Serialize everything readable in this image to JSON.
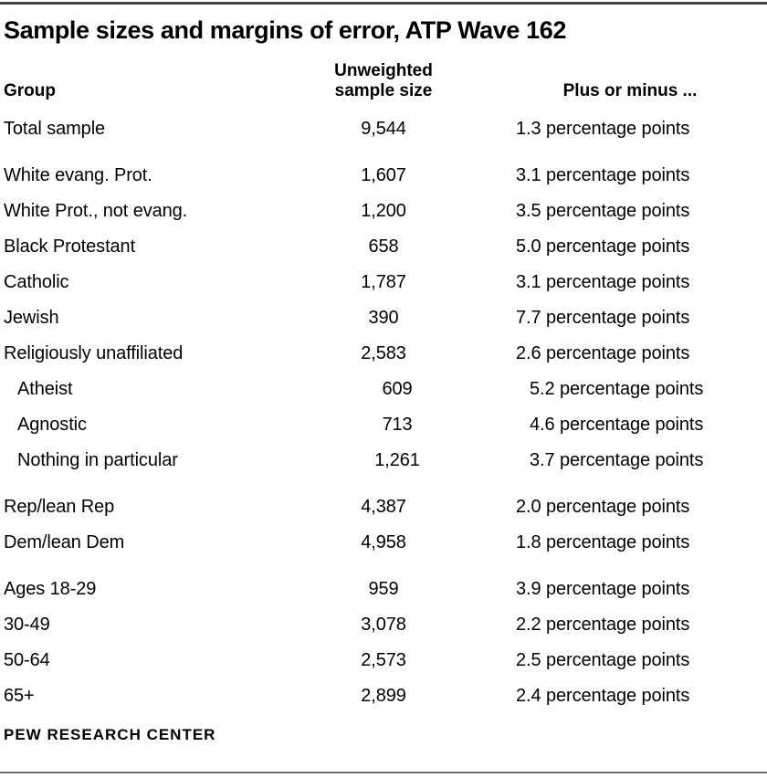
{
  "title": "Sample sizes and margins of error, ATP Wave 162",
  "chart_data": {
    "type": "table",
    "title": "Sample sizes and margins of error, ATP Wave 162",
    "header": {
      "group": "Group",
      "sample": "Unweighted sample size",
      "moe": "Plus or minus ..."
    },
    "rows": [
      {
        "group": "Total sample",
        "n": "9,544",
        "moe": "1.3 percentage points",
        "indent": false,
        "section_start": false
      },
      {
        "group": "White evang. Prot.",
        "n": "1,607",
        "moe": "3.1 percentage points",
        "indent": false,
        "section_start": true
      },
      {
        "group": "White Prot., not evang.",
        "n": "1,200",
        "moe": "3.5 percentage points",
        "indent": false,
        "section_start": false
      },
      {
        "group": "Black Protestant",
        "n": "658",
        "moe": "5.0 percentage points",
        "indent": false,
        "section_start": false
      },
      {
        "group": "Catholic",
        "n": "1,787",
        "moe": "3.1 percentage points",
        "indent": false,
        "section_start": false
      },
      {
        "group": "Jewish",
        "n": "390",
        "moe": "7.7 percentage points",
        "indent": false,
        "section_start": false
      },
      {
        "group": "Religiously unaffiliated",
        "n": "2,583",
        "moe": "2.6 percentage points",
        "indent": false,
        "section_start": false
      },
      {
        "group": "Atheist",
        "n": "609",
        "moe": "5.2 percentage points",
        "indent": true,
        "section_start": false
      },
      {
        "group": "Agnostic",
        "n": "713",
        "moe": "4.6 percentage points",
        "indent": true,
        "section_start": false
      },
      {
        "group": "Nothing in particular",
        "n": "1,261",
        "moe": "3.7 percentage points",
        "indent": true,
        "section_start": false
      },
      {
        "group": "Rep/lean Rep",
        "n": "4,387",
        "moe": "2.0 percentage points",
        "indent": false,
        "section_start": true
      },
      {
        "group": "Dem/lean Dem",
        "n": "4,958",
        "moe": "1.8 percentage points",
        "indent": false,
        "section_start": false
      },
      {
        "group": "Ages 18-29",
        "n": "959",
        "moe": "3.9 percentage points",
        "indent": false,
        "section_start": true
      },
      {
        "group": "30-49",
        "n": "3,078",
        "moe": "2.2 percentage points",
        "indent": false,
        "section_start": false
      },
      {
        "group": "50-64",
        "n": "2,573",
        "moe": "2.5 percentage points",
        "indent": false,
        "section_start": false
      },
      {
        "group": "65+",
        "n": "2,899",
        "moe": "2.4 percentage points",
        "indent": false,
        "section_start": false
      }
    ]
  },
  "footer": {
    "source_label": "PEW RESEARCH CENTER"
  },
  "colors": {
    "text": "#000000",
    "rule_top": "#454545",
    "rule_bottom": "#6b6b6b",
    "background": "#ffffff"
  }
}
